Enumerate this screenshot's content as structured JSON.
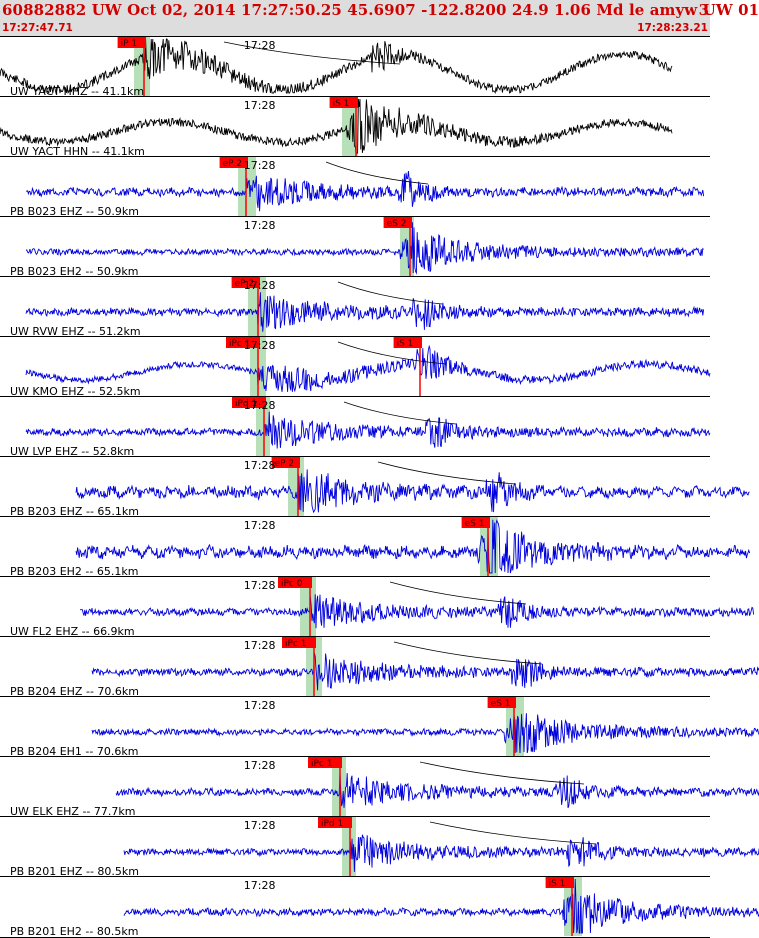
{
  "header": {
    "title": "60882882 UW Oct 02, 2014 17:27:50.25    45.6907 -122.8200 24.9 1.06 Md le amyw UW 01",
    "event_number": "3",
    "time_start": "17:27:47.71",
    "time_end": "17:28:23.21"
  },
  "chart_data": {
    "type": "line",
    "title": "60882882 UW Oct 02, 2014 17:27:50.25    45.6907 -122.8200 24.9 1.06 Md le amyw UW 01",
    "x_axis": {
      "start": "17:27:47.71",
      "end": "17:28:23.21",
      "tick_label": "17:28",
      "tick_time_s": 12.29
    },
    "colors": {
      "station_uw": "#000000",
      "seismogram": "#0000dd",
      "pick": "#ff0000",
      "window": "#b8e0b8",
      "curve": "#000000"
    },
    "traces": [
      {
        "label": "UW YACT HHZ -- 41.1km",
        "color": "#000000",
        "seed": 11,
        "amp": 0.75,
        "drift": 18,
        "start_s": 0.0,
        "end_s": 33.6,
        "pick": "iP 1",
        "pick_s": 7.2,
        "s_s": 19.0,
        "window_s": [
          6.7,
          7.5
        ]
      },
      {
        "label": "UW YACT HHN -- 41.1km",
        "color": "#000000",
        "seed": 12,
        "amp": 0.55,
        "drift": 10,
        "start_s": 0.0,
        "end_s": 33.6,
        "pick": "iS 1",
        "pick_s": 17.8,
        "s_s": 17.8,
        "window_s": [
          17.1,
          17.9
        ]
      },
      {
        "label": "PB B023 EHZ -- 50.9km",
        "color": "#0000dd",
        "seed": 21,
        "amp": 0.4,
        "drift": 0,
        "start_s": 1.3,
        "end_s": 35.2,
        "pick": "eP 2",
        "pick_s": 12.3,
        "s_s": 20.4,
        "window_s": [
          11.9,
          12.8
        ]
      },
      {
        "label": "PB B023 EH2 -- 50.9km",
        "color": "#0000dd",
        "seed": 22,
        "amp": 0.2,
        "drift": 0,
        "start_s": 1.3,
        "end_s": 35.2,
        "pick": "eS 2",
        "pick_s": 20.5,
        "s_s": 20.5,
        "window_s": [
          20.0,
          20.7
        ]
      },
      {
        "label": "UW RVW EHZ -- 51.2km",
        "color": "#0000dd",
        "seed": 31,
        "amp": 0.35,
        "drift": 0,
        "start_s": 1.3,
        "end_s": 35.2,
        "pick": "eP 2",
        "pick_s": 12.9,
        "s_s": 21.1,
        "window_s": [
          12.4,
          13.3
        ]
      },
      {
        "label": "UW KMO EHZ -- 52.5km",
        "color": "#0000dd",
        "seed": 41,
        "amp": 0.3,
        "drift": 8,
        "start_s": 1.3,
        "end_s": 35.5,
        "pick": "iPc 1",
        "pick_s": 12.9,
        "s_s": 21.3,
        "window_s": [
          12.5,
          13.3
        ],
        "s_pick": "iS 1",
        "s_pick_s": 21.0
      },
      {
        "label": "UW LVP EHZ -- 52.8km",
        "color": "#0000dd",
        "seed": 51,
        "amp": 0.3,
        "drift": 0,
        "start_s": 1.3,
        "end_s": 35.5,
        "pick": "iPd 1",
        "pick_s": 13.2,
        "s_s": 21.8,
        "window_s": [
          12.8,
          13.5
        ]
      },
      {
        "label": "PB B203 EHZ -- 65.1km",
        "color": "#0000dd",
        "seed": 61,
        "amp": 0.75,
        "drift": 0,
        "start_s": 3.8,
        "end_s": 37.5,
        "pick": "eP 2",
        "pick_s": 14.9,
        "s_s": 24.8,
        "window_s": [
          14.4,
          15.2
        ]
      },
      {
        "label": "PB B203 EH2 -- 65.1km",
        "color": "#0000dd",
        "seed": 62,
        "amp": 0.75,
        "drift": 0,
        "start_s": 3.8,
        "end_s": 37.5,
        "pick": "eS 1",
        "pick_s": 24.4,
        "s_s": 24.4,
        "window_s": [
          24.0,
          24.9
        ]
      },
      {
        "label": "UW FL2 EHZ -- 66.9km",
        "color": "#0000dd",
        "seed": 71,
        "amp": 0.3,
        "drift": 0,
        "start_s": 4.0,
        "end_s": 37.7,
        "pick": "iPc 0",
        "pick_s": 15.5,
        "s_s": 25.3,
        "window_s": [
          15.0,
          15.8
        ]
      },
      {
        "label": "PB B204 EHZ -- 70.6km",
        "color": "#0000dd",
        "seed": 81,
        "amp": 0.3,
        "drift": 0,
        "start_s": 4.6,
        "end_s": 38.4,
        "pick": "iPc 1",
        "pick_s": 15.7,
        "s_s": 26.1,
        "window_s": [
          15.3,
          16.1
        ]
      },
      {
        "label": "PB B204 EH1 -- 70.6km",
        "color": "#0000dd",
        "seed": 82,
        "amp": 0.2,
        "drift": 0,
        "start_s": 4.6,
        "end_s": 38.4,
        "pick": "eS 1",
        "pick_s": 25.7,
        "s_s": 25.7,
        "window_s": [
          25.3,
          26.2
        ]
      },
      {
        "label": "UW ELK EHZ -- 77.7km",
        "color": "#0000dd",
        "seed": 91,
        "amp": 0.3,
        "drift": 0,
        "start_s": 5.8,
        "end_s": 39.5,
        "pick": "iPc 1",
        "pick_s": 17.0,
        "s_s": 28.2,
        "window_s": [
          16.6,
          17.3
        ]
      },
      {
        "label": "PB B201 EHZ -- 80.5km",
        "color": "#0000dd",
        "seed": 101,
        "amp": 0.25,
        "drift": 0,
        "start_s": 6.2,
        "end_s": 39.8,
        "pick": "iPd 1",
        "pick_s": 17.5,
        "s_s": 28.8,
        "window_s": [
          17.1,
          17.8
        ]
      },
      {
        "label": "PB B201 EH2 -- 80.5km",
        "color": "#0000dd",
        "seed": 102,
        "amp": 0.3,
        "drift": 0,
        "start_s": 6.2,
        "end_s": 39.8,
        "pick": "iS 1",
        "pick_s": 28.6,
        "s_s": 28.6,
        "window_s": [
          28.2,
          29.1
        ]
      }
    ]
  }
}
